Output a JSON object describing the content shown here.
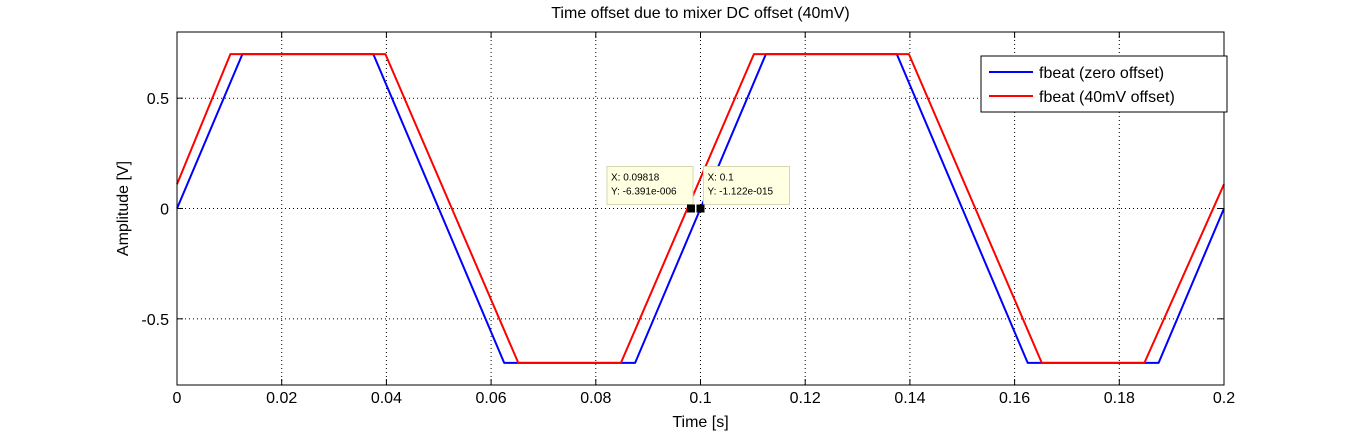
{
  "chart_data": {
    "type": "line",
    "title": "Time offset due to mixer DC offset (40mV)",
    "xlabel": "Time [s]",
    "ylabel": "Amplitude [V]",
    "xlim": [
      0,
      0.2
    ],
    "ylim": [
      -0.8,
      0.8
    ],
    "grid": true,
    "x_ticks": [
      0,
      0.02,
      0.04,
      0.06,
      0.08,
      0.1,
      0.12,
      0.14,
      0.16,
      0.18,
      0.2
    ],
    "x_tick_labels": [
      "0",
      "0.02",
      "0.04",
      "0.06",
      "0.08",
      "0.1",
      "0.12",
      "0.14",
      "0.16",
      "0.18",
      "0.2"
    ],
    "y_ticks": [
      -0.5,
      0,
      0.5
    ],
    "y_tick_labels": [
      "-0.5",
      "0",
      "0.5"
    ],
    "legend_position": "top-right",
    "series": [
      {
        "name": "fbeat (zero offset)",
        "color": "#0000ff",
        "x": [
          0,
          0.0125,
          0.0375,
          0.0625,
          0.0875,
          0.1125,
          0.1375,
          0.1625,
          0.1875,
          0.2
        ],
        "y": [
          0,
          0.7,
          0.7,
          -0.7,
          -0.7,
          0.7,
          0.7,
          -0.7,
          -0.7,
          0
        ]
      },
      {
        "name": "fbeat (40mV offset)",
        "color": "#ff0000",
        "x": [
          0,
          0.0102,
          0.0398,
          0.0652,
          0.0848,
          0.1102,
          0.1398,
          0.1652,
          0.1848,
          0.2
        ],
        "y": [
          0.11,
          0.7,
          0.7,
          -0.7,
          -0.7,
          0.7,
          0.7,
          -0.7,
          -0.7,
          0.11
        ]
      }
    ],
    "annotations": [
      {
        "x": 0.09818,
        "y": 0,
        "lines": [
          "X: 0.09818",
          "Y: -6.391e-006"
        ],
        "side": "left"
      },
      {
        "x": 0.1,
        "y": 0,
        "lines": [
          "X: 0.1",
          "Y: -1.122e-015"
        ],
        "side": "right"
      }
    ]
  }
}
